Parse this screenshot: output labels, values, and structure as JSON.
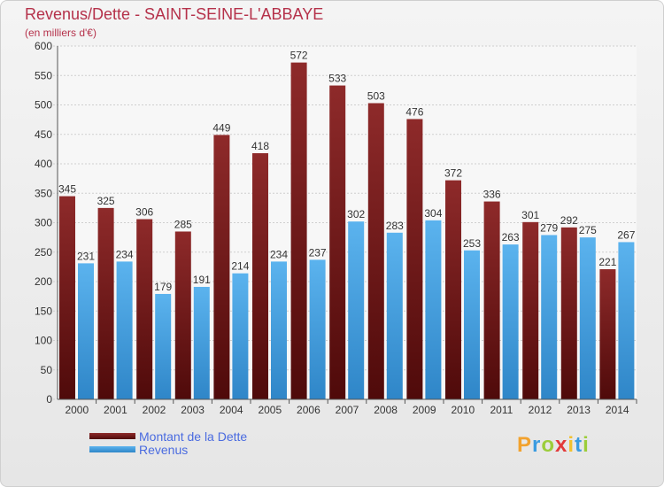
{
  "header": {
    "title": "Revenus/Dette - SAINT-SEINE-L'ABBAYE",
    "subtitle": "(en milliers d'€)"
  },
  "legend": {
    "items": [
      {
        "label": "Montant de la Dette",
        "color": "#7a1c1c"
      },
      {
        "label": "Revenus",
        "color": "#4aa3e0"
      }
    ]
  },
  "brand": {
    "letters": [
      "P",
      "r",
      "o",
      "x",
      "i",
      "t",
      "i"
    ],
    "colors": [
      "#f2a22e",
      "#3a9be0",
      "#9ccd3a",
      "#e23a3a",
      "#f2c12e",
      "#3a9be0",
      "#9ccd3a"
    ]
  },
  "chart_data": {
    "type": "bar",
    "title": "Revenus/Dette - SAINT-SEINE-L'ABBAYE",
    "ylabel": "(en milliers d'€)",
    "xlabel": "",
    "categories": [
      "2000",
      "2001",
      "2002",
      "2003",
      "2004",
      "2005",
      "2006",
      "2007",
      "2008",
      "2009",
      "2010",
      "2011",
      "2012",
      "2013",
      "2014"
    ],
    "series": [
      {
        "name": "Montant de la Dette",
        "color": "#7a1c1c",
        "values": [
          345,
          325,
          306,
          285,
          449,
          418,
          572,
          533,
          503,
          476,
          372,
          336,
          301,
          292,
          221
        ]
      },
      {
        "name": "Revenus",
        "color": "#4aa3e0",
        "values": [
          231,
          234,
          179,
          191,
          214,
          234,
          237,
          302,
          283,
          304,
          253,
          263,
          279,
          275,
          267
        ]
      }
    ],
    "ylim": [
      0,
      600
    ],
    "yticks": [
      0,
      50,
      100,
      150,
      200,
      250,
      300,
      350,
      400,
      450,
      500,
      550,
      600
    ],
    "grid": true,
    "legend_position": "bottom-left"
  }
}
